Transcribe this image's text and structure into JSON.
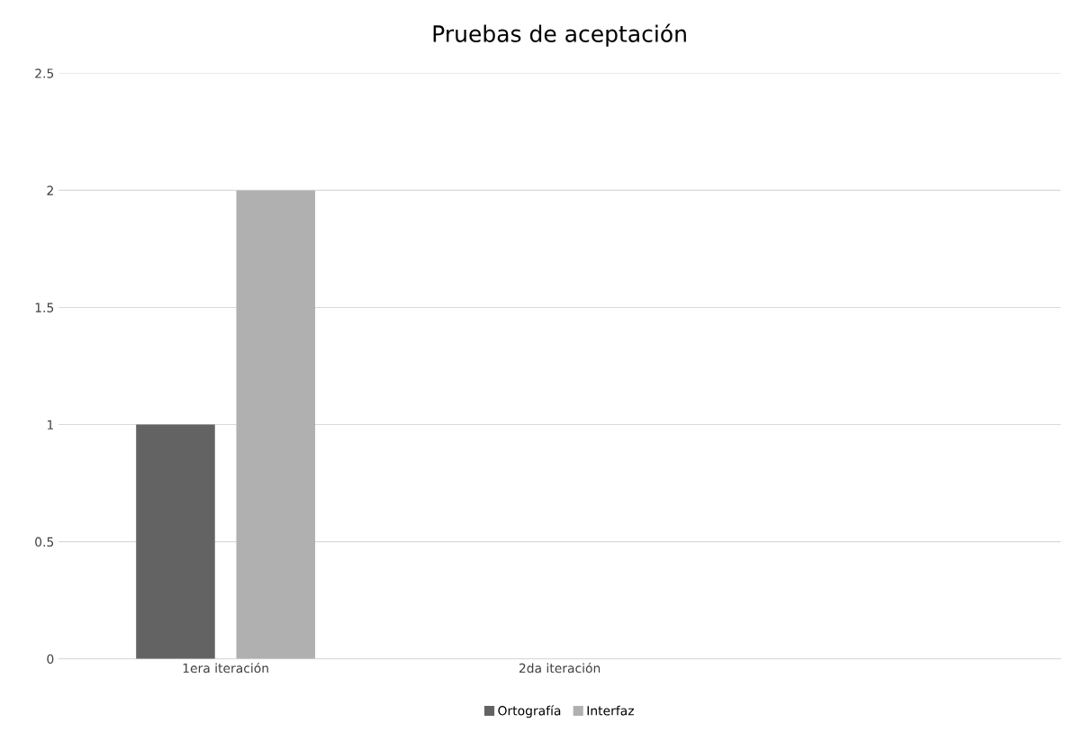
{
  "chart_data": {
    "type": "bar",
    "title": "Pruebas de aceptación",
    "categories": [
      "1era iteración",
      "2da iteración",
      null
    ],
    "series": [
      {
        "name": "Ortografía",
        "color": "#636363",
        "values": [
          1,
          null,
          null
        ]
      },
      {
        "name": "Interfaz",
        "color": "#b0b0b0",
        "values": [
          2,
          null,
          null
        ]
      }
    ],
    "ylim": [
      0,
      2.5
    ],
    "yticks": [
      0,
      0.5,
      1,
      1.5,
      2,
      2.5
    ],
    "grid": "y",
    "legend": "bottom"
  }
}
